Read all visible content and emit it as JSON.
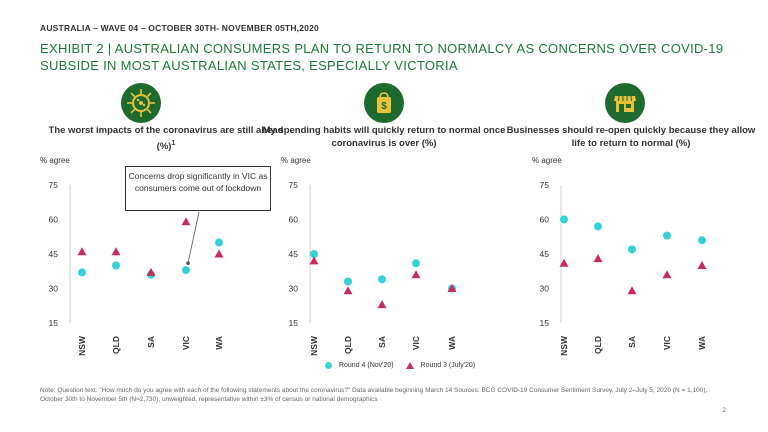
{
  "header": "AUSTRALIA – WAVE 04 – OCTOBER 30TH- NOVEMBER 05TH,2020",
  "title": "EXHIBIT 2 | AUSTRALIAN CONSUMERS PLAN TO RETURN TO NORMALCY AS CONCERNS OVER COVID-19 SUBSIDE IN MOST AUSTRALIAN STATES, ESPECIALLY VICTORIA",
  "colors": {
    "accent": "#1a7a3a",
    "icon_bg": "#1f6b2e",
    "round4": "#36d1d6",
    "round3": "#c72c5f",
    "grid": "#d0d0d0"
  },
  "panels": [
    {
      "title": "The worst impacts of the coronavirus are still ahead (%)",
      "title_sup": "1",
      "unit": "% agree",
      "icon": "virus-icon"
    },
    {
      "title": "My spending habits will quickly return to normal once coronavirus is over (%)",
      "unit": "% agree",
      "icon": "shopping-bag-icon"
    },
    {
      "title": "Businesses should re-open quickly because they allow life to return to normal (%)",
      "unit": "% agree",
      "icon": "storefront-icon"
    }
  ],
  "callout": "Concerns drop significantly in VIC as consumers come out of lockdown",
  "legend": {
    "round4": "Round 4 (Nov'20)",
    "round3": "Round 3 (July'20)"
  },
  "footnote": "Note: Question text: \"How much do you agree with each of the following statements about the coronavirus?\" Data available beginning March 14 Sources: BCG COVID-19 Consumer Sentiment Survey, July 2–July 5, 2020 (N = 1,100), October 30th to November 5th (N=2,730), unweighted, representative within ±3% of census or national demographics",
  "page_number": "2",
  "chart_data": [
    {
      "type": "scatter",
      "title": "The worst impacts of the coronavirus are still ahead (%)1",
      "ylabel": "% agree",
      "categories": [
        "NSW",
        "QLD",
        "SA",
        "VIC",
        "WA"
      ],
      "ylim": [
        15,
        75
      ],
      "yticks": [
        15,
        30,
        45,
        60,
        75
      ],
      "series": [
        {
          "name": "Round 4 (Nov'20)",
          "marker": "circle",
          "values": [
            37,
            40,
            36,
            38,
            50
          ]
        },
        {
          "name": "Round 3 (July'20)",
          "marker": "triangle",
          "values": [
            46,
            46,
            37,
            59,
            45
          ]
        }
      ]
    },
    {
      "type": "scatter",
      "title": "My spending habits will quickly return to normal once coronavirus is over (%)",
      "ylabel": "% agree",
      "categories": [
        "NSW",
        "QLD",
        "SA",
        "VIC",
        "WA"
      ],
      "ylim": [
        15,
        75
      ],
      "yticks": [
        15,
        30,
        45,
        60,
        75
      ],
      "series": [
        {
          "name": "Round 4 (Nov'20)",
          "marker": "circle",
          "values": [
            45,
            33,
            34,
            41,
            30
          ]
        },
        {
          "name": "Round 3 (July'20)",
          "marker": "triangle",
          "values": [
            42,
            29,
            23,
            36,
            30
          ]
        }
      ]
    },
    {
      "type": "scatter",
      "title": "Businesses should re-open quickly because they allow life to return to normal (%)",
      "ylabel": "% agree",
      "categories": [
        "NSW",
        "QLD",
        "SA",
        "VIC",
        "WA"
      ],
      "ylim": [
        15,
        75
      ],
      "yticks": [
        15,
        30,
        45,
        60,
        75
      ],
      "series": [
        {
          "name": "Round 4 (Nov'20)",
          "marker": "circle",
          "values": [
            60,
            57,
            47,
            53,
            51
          ]
        },
        {
          "name": "Round 3 (July'20)",
          "marker": "triangle",
          "values": [
            41,
            43,
            29,
            36,
            40
          ]
        }
      ]
    }
  ]
}
